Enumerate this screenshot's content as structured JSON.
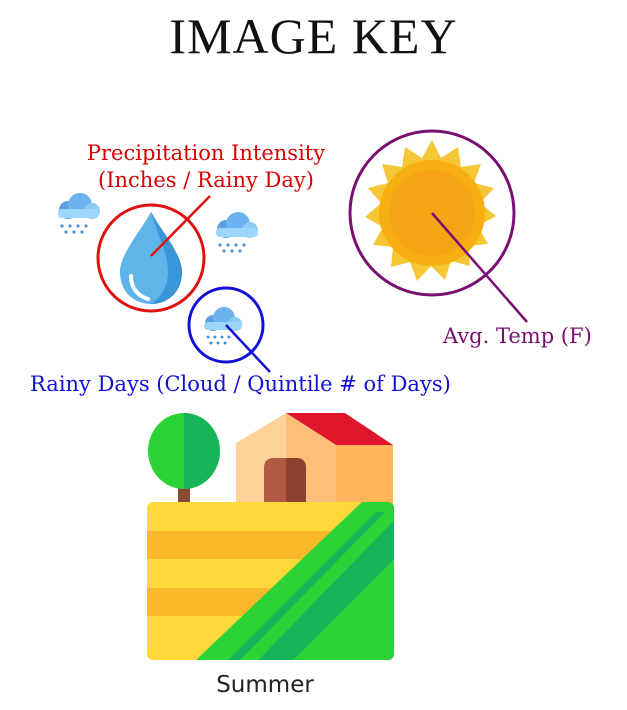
{
  "title": "IMAGE KEY",
  "labels": {
    "precipitation_line1": "Precipitation Intensity",
    "precipitation_line2": "(Inches / Rainy Day)",
    "avg_temp": "Avg. Temp (F)",
    "rainy_days": "Rainy Days (Cloud / Quintile # of Days)",
    "season": "Summer"
  },
  "colors": {
    "precipitation": "#e01010",
    "temperature": "#7a0f72",
    "rainy_days": "#1010d8"
  },
  "icons": [
    "rain-cloud-icon",
    "water-drop-icon",
    "sun-icon",
    "farm-landscape-icon"
  ]
}
